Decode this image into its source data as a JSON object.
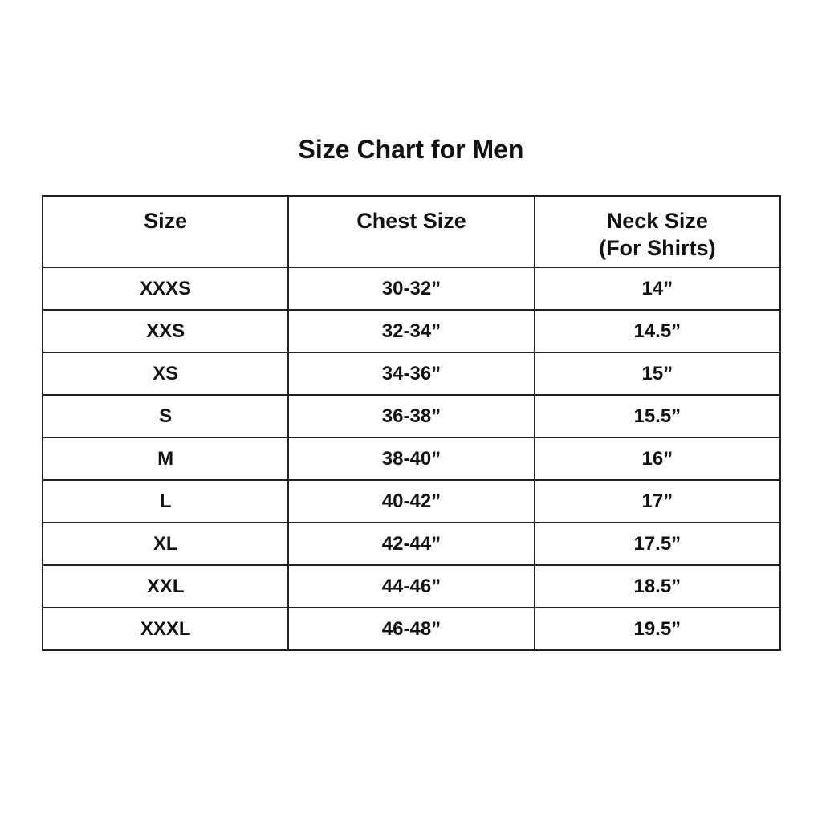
{
  "title": "Size Chart for Men",
  "headers": {
    "size": "Size",
    "chest": "Chest Size",
    "neck": "Neck Size",
    "neck_sub": "(For Shirts)"
  },
  "rows": [
    {
      "size": "XXXS",
      "chest": "30-32”",
      "neck": "14”"
    },
    {
      "size": "XXS",
      "chest": "32-34”",
      "neck": "14.5”"
    },
    {
      "size": "XS",
      "chest": "34-36”",
      "neck": "15”"
    },
    {
      "size": "S",
      "chest": "36-38”",
      "neck": "15.5”"
    },
    {
      "size": "M",
      "chest": "38-40”",
      "neck": "16”"
    },
    {
      "size": "L",
      "chest": "40-42”",
      "neck": "17”"
    },
    {
      "size": "XL",
      "chest": "42-44”",
      "neck": "17.5”"
    },
    {
      "size": "XXL",
      "chest": "44-46”",
      "neck": "18.5”"
    },
    {
      "size": "XXXL",
      "chest": "46-48”",
      "neck": "19.5”"
    }
  ]
}
